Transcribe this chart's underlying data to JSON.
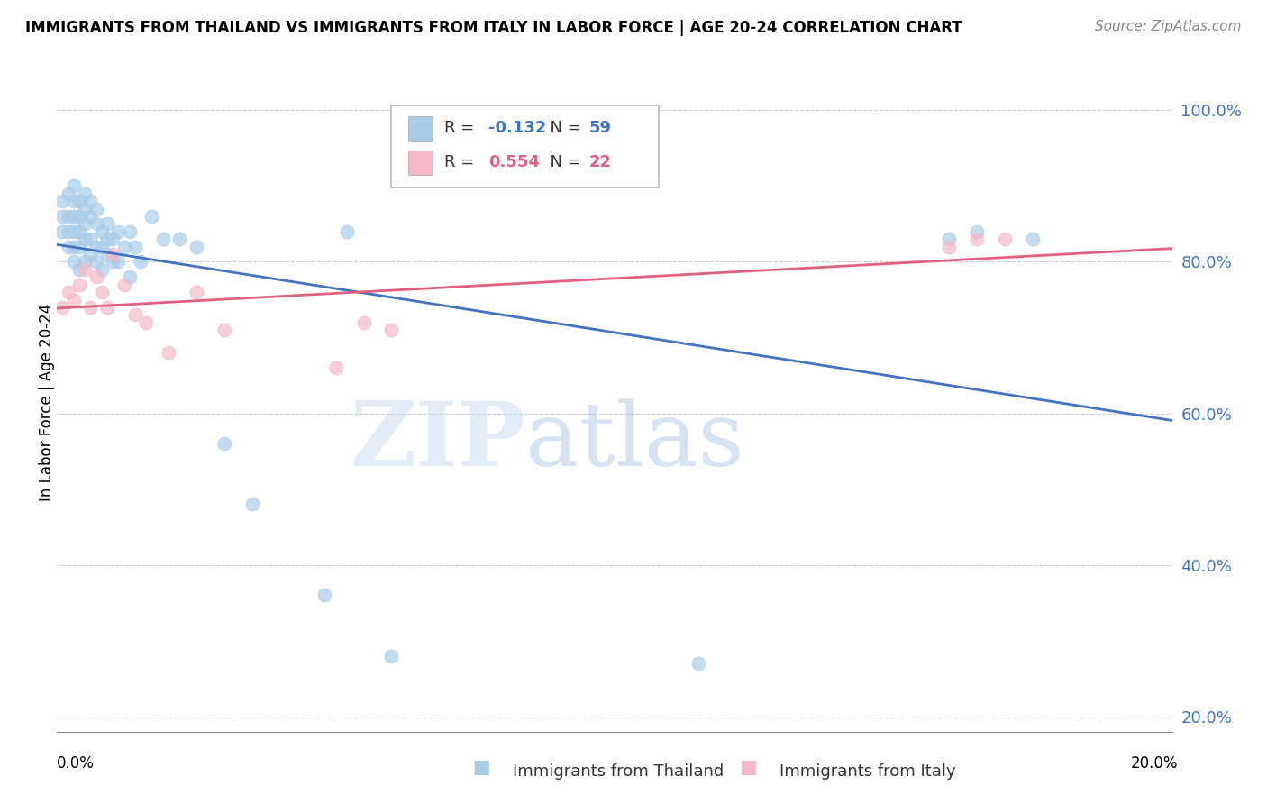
{
  "title": "IMMIGRANTS FROM THAILAND VS IMMIGRANTS FROM ITALY IN LABOR FORCE | AGE 20-24 CORRELATION CHART",
  "source": "Source: ZipAtlas.com",
  "ylabel": "In Labor Force | Age 20-24",
  "xlim": [
    0.0,
    0.2
  ],
  "ylim": [
    0.18,
    1.05
  ],
  "yticks": [
    0.2,
    0.4,
    0.6,
    0.8,
    1.0
  ],
  "ytick_labels": [
    "20.0%",
    "40.0%",
    "60.0%",
    "80.0%",
    "100.0%"
  ],
  "thailand_color": "#a8cce8",
  "thailand_line_color": "#4472c4",
  "italy_color": "#f4b8c8",
  "italy_line_color": "#e06080",
  "thailand_R": -0.132,
  "thailand_N": 59,
  "italy_R": 0.554,
  "italy_N": 22,
  "watermark_zip": "ZIP",
  "watermark_atlas": "atlas",
  "thailand_x": [
    0.001,
    0.001,
    0.001,
    0.002,
    0.002,
    0.002,
    0.002,
    0.003,
    0.003,
    0.003,
    0.003,
    0.003,
    0.003,
    0.004,
    0.004,
    0.004,
    0.004,
    0.004,
    0.005,
    0.005,
    0.005,
    0.005,
    0.005,
    0.006,
    0.006,
    0.006,
    0.006,
    0.007,
    0.007,
    0.007,
    0.007,
    0.008,
    0.008,
    0.008,
    0.009,
    0.009,
    0.009,
    0.01,
    0.01,
    0.011,
    0.011,
    0.012,
    0.013,
    0.013,
    0.014,
    0.015,
    0.017,
    0.019,
    0.022,
    0.025,
    0.03,
    0.035,
    0.048,
    0.052,
    0.06,
    0.115,
    0.16,
    0.165,
    0.175
  ],
  "thailand_y": [
    0.84,
    0.86,
    0.88,
    0.82,
    0.84,
    0.86,
    0.89,
    0.8,
    0.82,
    0.84,
    0.86,
    0.88,
    0.9,
    0.79,
    0.82,
    0.84,
    0.86,
    0.88,
    0.8,
    0.83,
    0.85,
    0.87,
    0.89,
    0.81,
    0.83,
    0.86,
    0.88,
    0.8,
    0.82,
    0.85,
    0.87,
    0.79,
    0.82,
    0.84,
    0.81,
    0.83,
    0.85,
    0.8,
    0.83,
    0.8,
    0.84,
    0.82,
    0.84,
    0.78,
    0.82,
    0.8,
    0.86,
    0.83,
    0.83,
    0.82,
    0.56,
    0.48,
    0.36,
    0.84,
    0.28,
    0.27,
    0.83,
    0.84,
    0.83
  ],
  "italy_x": [
    0.001,
    0.002,
    0.003,
    0.004,
    0.005,
    0.006,
    0.007,
    0.008,
    0.009,
    0.01,
    0.012,
    0.014,
    0.016,
    0.02,
    0.025,
    0.03,
    0.05,
    0.055,
    0.06,
    0.16,
    0.165,
    0.17
  ],
  "italy_y": [
    0.74,
    0.76,
    0.75,
    0.77,
    0.79,
    0.74,
    0.78,
    0.76,
    0.74,
    0.81,
    0.77,
    0.73,
    0.72,
    0.68,
    0.76,
    0.71,
    0.66,
    0.72,
    0.71,
    0.82,
    0.83,
    0.83
  ],
  "legend_R_label": "R = ",
  "legend_N_label": "  N = ",
  "legend_thailand_R": "-0.132",
  "legend_thailand_N": "59",
  "legend_italy_R": "0.554",
  "legend_italy_N": "22",
  "bottom_legend_thailand": "Immigrants from Thailand",
  "bottom_legend_italy": "Immigrants from Italy"
}
